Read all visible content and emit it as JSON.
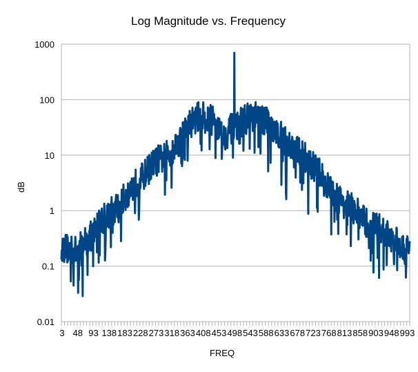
{
  "chart_data": {
    "type": "line",
    "title": "Log Magnitude vs. Frequency",
    "xlabel": "FREQ",
    "ylabel": "dB",
    "y_scale": "log",
    "ylim": [
      0.01,
      1000
    ],
    "y_ticks": [
      "0.01",
      "0.1",
      "1",
      "10",
      "100",
      "1000"
    ],
    "x_tick_labels": [
      "3",
      "48",
      "93",
      "138",
      "183",
      "228",
      "273",
      "318",
      "363",
      "408",
      "453",
      "498",
      "543",
      "588",
      "633",
      "678",
      "723",
      "768",
      "813",
      "858",
      "903",
      "948",
      "993"
    ],
    "grid": true,
    "legend": "none",
    "series_color": "#004586",
    "series": [
      {
        "x": [
          3,
          24,
          45,
          66,
          87,
          108,
          129,
          150,
          171,
          192,
          213,
          234,
          255,
          276,
          297,
          318,
          339,
          360,
          381,
          402,
          423,
          444,
          465,
          486,
          497,
          508,
          529,
          550,
          571,
          592,
          613,
          634,
          655,
          676,
          697,
          718,
          739,
          760,
          781,
          802,
          823,
          844,
          865,
          886,
          907,
          928,
          949,
          970,
          990
        ],
        "values": [
          0.22,
          0.2,
          0.18,
          0.27,
          0.35,
          0.6,
          0.8,
          1.0,
          1.3,
          2.2,
          3.0,
          4.0,
          6.0,
          8.0,
          9.0,
          12.0,
          18.0,
          30.0,
          45.0,
          50.0,
          45.0,
          40.0,
          20.0,
          30.0,
          700.0,
          35.0,
          45.0,
          50.0,
          45.0,
          40.0,
          30.0,
          20.0,
          15.0,
          12.0,
          10.0,
          7.0,
          5.0,
          3.0,
          2.0,
          1.5,
          1.2,
          1.0,
          0.7,
          0.5,
          0.5,
          0.4,
          0.3,
          0.25,
          0.2
        ]
      }
    ]
  }
}
